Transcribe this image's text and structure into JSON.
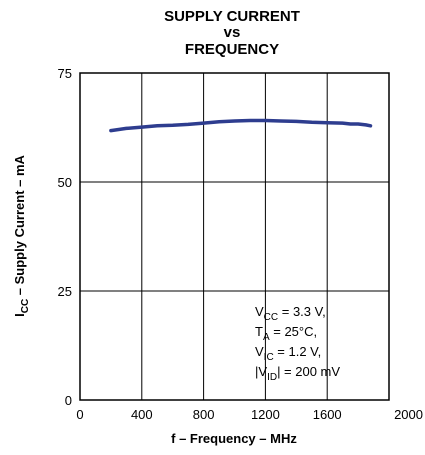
{
  "chart_data": {
    "type": "line",
    "title_lines": [
      "SUPPLY CURRENT",
      "vs",
      "FREQUENCY"
    ],
    "xlabel": "f – Frequency – MHz",
    "ylabel_main": "I",
    "ylabel_sub": "CC",
    "ylabel_rest": "  – Supply Current – mA",
    "xlim": [
      0,
      2000
    ],
    "ylim": [
      0,
      75
    ],
    "x_ticks": [
      0,
      400,
      800,
      1200,
      1600,
      2000
    ],
    "y_ticks": [
      0,
      25,
      50,
      75
    ],
    "grid": true,
    "line_color": "#2e3d8f",
    "series": [
      {
        "x": [
          200,
          300,
          400,
          500,
          600,
          700,
          800,
          900,
          1000,
          1100,
          1200,
          1300,
          1400,
          1500,
          1600,
          1700,
          1750,
          1800,
          1850,
          1880
        ],
        "y": [
          61.8,
          62.3,
          62.6,
          62.9,
          63.0,
          63.2,
          63.5,
          63.8,
          64.0,
          64.1,
          64.1,
          64.0,
          63.9,
          63.7,
          63.6,
          63.5,
          63.3,
          63.3,
          63.1,
          62.9
        ]
      }
    ],
    "conditions": [
      {
        "main": "V",
        "sub": "CC",
        "rest": " = 3.3 V,"
      },
      {
        "main": "T",
        "sub": "A",
        "rest": " = 25°C,"
      },
      {
        "main": "V",
        "sub": "IC",
        "rest": " = 1.2 V,"
      },
      {
        "main": "|V",
        "sub": "ID",
        "rest": "| = 200 mV"
      }
    ]
  }
}
